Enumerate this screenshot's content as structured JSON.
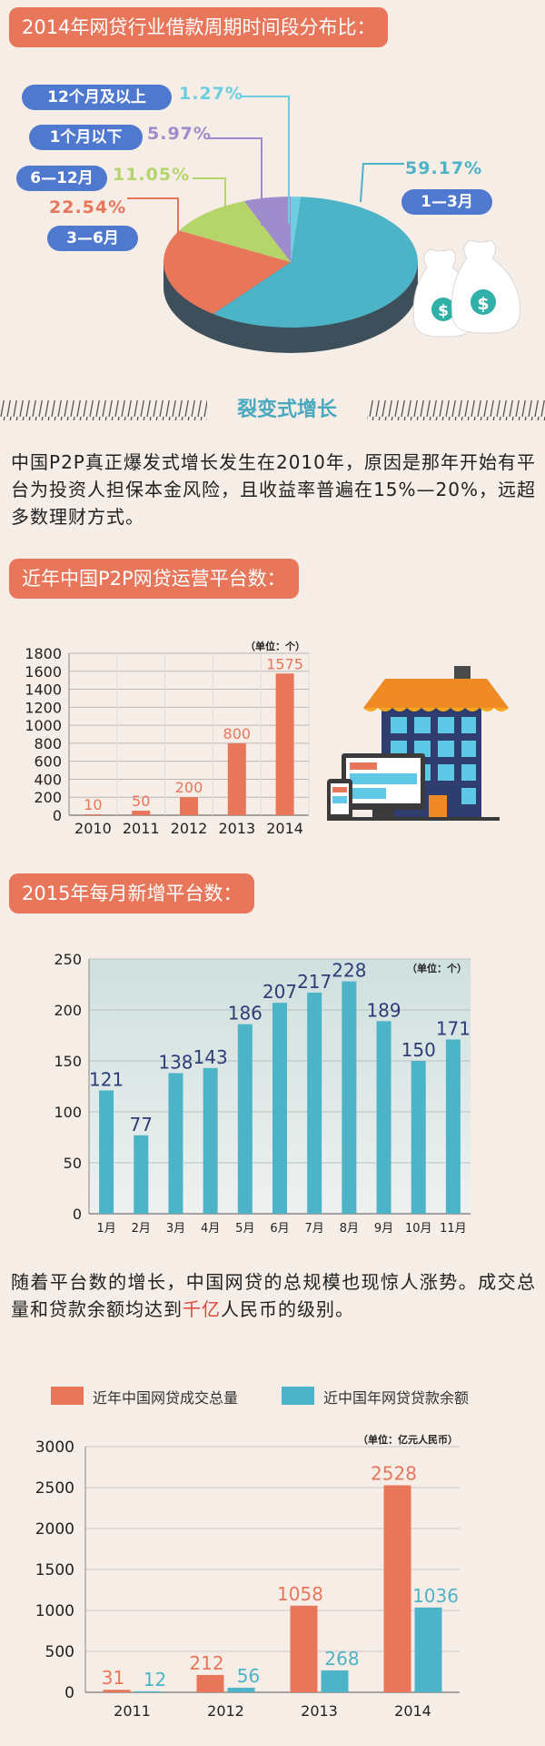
{
  "sections": {
    "pie_title": "2014年网贷行业借款周期时间段分布比：",
    "fission_title": "裂变式增长",
    "fission_text": "中国P2P真正爆发式增长发生在2010年，原因是那年开始有平台为投资人担保本金风险，且收益率普遍在15%—20%，远超多数理财方式。",
    "platforms_title": "近年中国P2P网贷运营平台数：",
    "monthly_title": "2015年每月新增平台数：",
    "scale_text_1": "随着平台数的增长，中国网贷的总规模也现惊人涨势。成交总量和贷款余额均达到",
    "scale_text_hl": "千亿",
    "scale_text_2": "人民币的级别。"
  },
  "chart_data": [
    {
      "type": "pie",
      "title": "2014年网贷行业借款周期时间段分布比：",
      "labels": [
        "1—3月",
        "3—6月",
        "6—12月",
        "1个月以下",
        "12个月及以上"
      ],
      "values": [
        59.17,
        22.54,
        11.05,
        5.97,
        1.27
      ],
      "value_labels": [
        "59.17%",
        "22.54%",
        "11.05%",
        "5.97%",
        "1.27%"
      ],
      "colors": [
        "#4cb4c6",
        "#e8765a",
        "#b5d56a",
        "#9f8ccc",
        "#6dcee2"
      ]
    },
    {
      "type": "bar",
      "title": "近年中国P2P网贷运营平台数：",
      "unit": "（单位：个）",
      "categories": [
        "2010",
        "2011",
        "2012",
        "2013",
        "2014"
      ],
      "values": [
        10,
        50,
        200,
        800,
        1575
      ],
      "ylim": [
        0,
        1800
      ],
      "yticks": [
        0,
        200,
        400,
        600,
        800,
        1000,
        1200,
        1400,
        1600,
        1800
      ],
      "color": "#e8765a"
    },
    {
      "type": "bar",
      "title": "2015年每月新增平台数：",
      "unit": "（单位：个）",
      "categories": [
        "1月",
        "2月",
        "3月",
        "4月",
        "5月",
        "6月",
        "7月",
        "8月",
        "9月",
        "10月",
        "11月"
      ],
      "values": [
        121,
        77,
        138,
        143,
        186,
        207,
        217,
        228,
        189,
        150,
        171
      ],
      "ylim": [
        0,
        250
      ],
      "yticks": [
        0,
        50,
        100,
        150,
        200,
        250
      ],
      "color": "#4cb4c6"
    },
    {
      "type": "bar",
      "unit": "（单位：亿元人民币）",
      "categories": [
        "2011",
        "2012",
        "2013",
        "2014"
      ],
      "series": [
        {
          "name": "近年中国网贷成交总量",
          "values": [
            31,
            212,
            1058,
            2528
          ],
          "color": "#e8765a"
        },
        {
          "name": "近中国年网贷贷款余额",
          "values": [
            12,
            56,
            268,
            1036
          ],
          "color": "#4cb4c6"
        }
      ],
      "ylim": [
        0,
        3000
      ],
      "yticks": [
        0,
        500,
        1000,
        1500,
        2000,
        2500,
        3000
      ]
    }
  ]
}
